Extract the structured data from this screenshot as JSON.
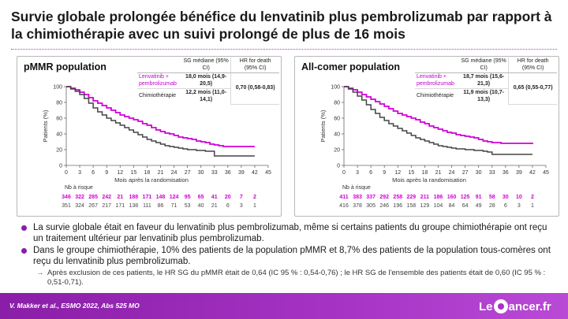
{
  "title": "Survie globale prolongée bénéfice du lenvatinib plus pembrolizumab par rapport à la chimiothérapie avec un suivi prolongé de plus de 16 mois",
  "colors": {
    "accent": "#8a1ea8",
    "lenva": "#d000d8",
    "chemo": "#444444"
  },
  "table_headers": {
    "median": "SG médiane (95% CI)",
    "hr": "HR for death (95% CI)"
  },
  "groups": {
    "lenva": "Lenvatinib + pembrolizumab",
    "chemo": "Chimiothérapie"
  },
  "risk_label": "Nb à risque",
  "panels": [
    {
      "title": "pMMR population",
      "lenva_median": "18,0 mois (14,9-20,5)",
      "chemo_median": "12,2 mois (11,0-14,1)",
      "hr": "0,70 (0,58-0,83)"
    },
    {
      "title": "All-comer population",
      "lenva_median": "18,7 mois (15,6-21,3)",
      "chemo_median": "11,9 mois (10,7-13,3)",
      "hr": "0,65 (0,55-0,77)"
    }
  ],
  "chart_data": [
    {
      "type": "line",
      "title": "pMMR population",
      "xlabel": "Mois après la randomisation",
      "ylabel": "Patients (%)",
      "xlim": [
        0,
        45
      ],
      "ylim": [
        0,
        100
      ],
      "xticks": [
        0,
        3,
        6,
        9,
        12,
        15,
        18,
        21,
        24,
        27,
        30,
        33,
        36,
        39,
        42,
        45
      ],
      "yticks": [
        0,
        20,
        40,
        60,
        80,
        100
      ],
      "series": [
        {
          "name": "Lenvatinib + pembrolizumab",
          "color": "#d000d8",
          "x": [
            0,
            1,
            2,
            3,
            4,
            5,
            6,
            7,
            8,
            9,
            10,
            11,
            12,
            13,
            14,
            15,
            16,
            17,
            18,
            19,
            20,
            21,
            22,
            23,
            24,
            25,
            26,
            27,
            28,
            29,
            30,
            31,
            32,
            33,
            34,
            35,
            36,
            37,
            38,
            39,
            40,
            41,
            42
          ],
          "y": [
            100,
            98,
            96,
            93,
            90,
            86,
            82,
            79,
            76,
            73,
            70,
            67,
            64,
            62,
            60,
            58,
            56,
            53,
            51,
            48,
            45,
            43,
            41,
            40,
            38,
            36,
            35,
            34,
            33,
            31,
            30,
            29,
            27,
            26,
            25,
            24,
            24,
            24,
            24,
            24,
            24,
            24,
            24
          ],
          "risk": [
            346,
            322,
            285,
            242,
            21,
            188,
            171,
            148,
            124,
            95,
            65,
            41,
            20,
            7,
            2
          ]
        },
        {
          "name": "Chimiothérapie",
          "color": "#444444",
          "x": [
            0,
            1,
            2,
            3,
            4,
            5,
            6,
            7,
            8,
            9,
            10,
            11,
            12,
            13,
            14,
            15,
            16,
            17,
            18,
            19,
            20,
            21,
            22,
            23,
            24,
            25,
            26,
            27,
            28,
            29,
            30,
            31,
            32,
            33,
            34,
            35,
            36,
            37,
            38,
            39,
            40,
            41,
            42
          ],
          "y": [
            100,
            97,
            94,
            90,
            85,
            79,
            73,
            68,
            64,
            60,
            57,
            54,
            51,
            48,
            45,
            42,
            39,
            36,
            33,
            31,
            29,
            27,
            25,
            24,
            23,
            22,
            21,
            20,
            20,
            19,
            19,
            18,
            18,
            12,
            12,
            12,
            12,
            12,
            12,
            12,
            12,
            12,
            12
          ],
          "risk": [
            351,
            324,
            267,
            217,
            171,
            138,
            111,
            86,
            71,
            53,
            40,
            21,
            6,
            3,
            1
          ]
        }
      ]
    },
    {
      "type": "line",
      "title": "All-comer population",
      "xlabel": "Mois après la randomisation",
      "ylabel": "Patients (%)",
      "xlim": [
        0,
        45
      ],
      "ylim": [
        0,
        100
      ],
      "xticks": [
        0,
        3,
        6,
        9,
        12,
        15,
        18,
        21,
        24,
        27,
        30,
        33,
        36,
        39,
        42,
        45
      ],
      "yticks": [
        0,
        20,
        40,
        60,
        80,
        100
      ],
      "series": [
        {
          "name": "Lenvatinib + pembrolizumab",
          "color": "#d000d8",
          "x": [
            0,
            1,
            2,
            3,
            4,
            5,
            6,
            7,
            8,
            9,
            10,
            11,
            12,
            13,
            14,
            15,
            16,
            17,
            18,
            19,
            20,
            21,
            22,
            23,
            24,
            25,
            26,
            27,
            28,
            29,
            30,
            31,
            32,
            33,
            34,
            35,
            36,
            37,
            38,
            39,
            40,
            41,
            42
          ],
          "y": [
            100,
            98,
            96,
            93,
            90,
            87,
            84,
            81,
            78,
            75,
            72,
            69,
            66,
            64,
            62,
            60,
            58,
            55,
            53,
            50,
            48,
            46,
            44,
            42,
            41,
            39,
            38,
            37,
            36,
            35,
            33,
            31,
            30,
            29,
            29,
            28,
            28,
            28,
            28,
            28,
            28,
            28,
            27
          ],
          "risk": [
            411,
            383,
            337,
            292,
            258,
            229,
            211,
            186,
            160,
            125,
            91,
            58,
            30,
            10,
            2
          ]
        },
        {
          "name": "Chimiothérapie",
          "color": "#444444",
          "x": [
            0,
            1,
            2,
            3,
            4,
            5,
            6,
            7,
            8,
            9,
            10,
            11,
            12,
            13,
            14,
            15,
            16,
            17,
            18,
            19,
            20,
            21,
            22,
            23,
            24,
            25,
            26,
            27,
            28,
            29,
            30,
            31,
            32,
            33,
            34,
            35,
            36,
            37,
            38,
            39,
            40,
            41,
            42
          ],
          "y": [
            100,
            97,
            93,
            88,
            83,
            77,
            71,
            66,
            61,
            57,
            53,
            50,
            47,
            44,
            41,
            38,
            35,
            33,
            31,
            29,
            27,
            25,
            24,
            23,
            22,
            21,
            21,
            20,
            20,
            19,
            19,
            18,
            17,
            14,
            14,
            14,
            14,
            14,
            14,
            14,
            14,
            14,
            14
          ],
          "risk": [
            416,
            378,
            305,
            246,
            196,
            158,
            129,
            104,
            84,
            64,
            49,
            28,
            6,
            3,
            1
          ]
        }
      ]
    }
  ],
  "bullets": [
    "La survie globale était en faveur du lenvatinib plus pembrolizumab, même si certains patients du groupe chimiothérapie ont reçu un traitement ultérieur par lenvatinib plus pembrolizumab.",
    "Dans le groupe chimiothérapie, 10% des patients de la population pMMR et 8,7% des patients de la population tous-comères ont reçu du lenvatinib plus pembrolizumab."
  ],
  "subbullet": "Après exclusion de ces patients, le HR SG du pMMR était de 0,64 (IC 95 % : 0,54-0,76) ; le HR SG de l'ensemble des patients était de 0,60 (IC 95 % : 0,51-0,71).",
  "footer": {
    "reference": "V. Makker et al., ESMO 2022, Abs 525 MO",
    "logo_left": "Le",
    "logo_right": "ancer.fr"
  }
}
